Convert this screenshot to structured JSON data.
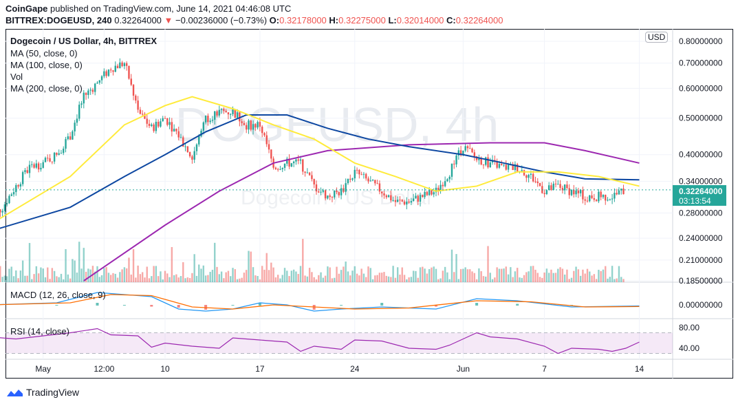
{
  "header": {
    "publisher": "CoinGape",
    "published_text": "published on TradingView.com, June 14, 2021 04:46:08 UTC",
    "symbol": "BITTREX:DOGEUSD, 240",
    "last": "0.32264000",
    "change": "−0.00236000 (−0.73%)",
    "o_label": "O:",
    "o": "0.32178000",
    "h_label": "H:",
    "h": "0.32275000",
    "l_label": "L:",
    "l": "0.32014000",
    "c_label": "C:",
    "c": "0.32264000"
  },
  "legend": {
    "title": "Dogecoin / US Dollar, 4h, BITTREX",
    "ma50": "MA (50, close, 0)",
    "ma100": "MA (100, close, 0)",
    "vol": "Vol",
    "ma200": "MA (200, close, 0)",
    "macd": "MACD (12, 26, close, 9)",
    "rsi": "RSI (14, close)"
  },
  "watermark": {
    "symbol": "DOGEUSD, 4h",
    "name": "Dogecoin / US Dollar"
  },
  "price_label": {
    "value": "0.32264000",
    "countdown": "03:13:54"
  },
  "currency_badge": "USD",
  "footer": {
    "brand": "TradingView"
  },
  "colors": {
    "up": "#26a69a",
    "down": "#ef5350",
    "ma50": "#ffeb3b",
    "ma100": "#0d47a1",
    "ma200": "#9c27b0",
    "macd": "#2196f3",
    "signal": "#ff6d00",
    "rsi": "#9c27b0"
  },
  "chart_data": {
    "type": "candlestick",
    "title": "Dogecoin / US Dollar, 4h, BITTREX",
    "y_scale": "log",
    "ylim": [
      0.185,
      0.8
    ],
    "yticks": [
      "0.80000000",
      "0.70000000",
      "0.60000000",
      "0.50000000",
      "0.40000000",
      "0.34000000",
      "0.28000000",
      "0.24000000",
      "0.21000000",
      "0.18500000"
    ],
    "ytick_values": [
      0.8,
      0.7,
      0.6,
      0.5,
      0.4,
      0.34,
      0.28,
      0.24,
      0.21,
      0.185
    ],
    "xticks": [
      {
        "label": "May",
        "day": 1
      },
      {
        "label": "12:00",
        "day": 5.5
      },
      {
        "label": "10",
        "day": 10
      },
      {
        "label": "17",
        "day": 17
      },
      {
        "label": "24",
        "day": 24
      },
      {
        "label": "Jun",
        "day": 32
      },
      {
        "label": "7",
        "day": 38
      },
      {
        "label": "14",
        "day": 45
      }
    ],
    "x_unit": "days since May 0 (Jun 1 = 32)",
    "daily_close": {
      "start_day": -3,
      "values": [
        0.27,
        0.29,
        0.33,
        0.37,
        0.38,
        0.4,
        0.45,
        0.57,
        0.62,
        0.68,
        0.7,
        0.52,
        0.47,
        0.5,
        0.45,
        0.39,
        0.5,
        0.52,
        0.52,
        0.48,
        0.48,
        0.37,
        0.38,
        0.38,
        0.33,
        0.31,
        0.32,
        0.36,
        0.34,
        0.32,
        0.3,
        0.3,
        0.31,
        0.32,
        0.36,
        0.42,
        0.39,
        0.38,
        0.37,
        0.37,
        0.35,
        0.32,
        0.33,
        0.32,
        0.31,
        0.31,
        0.31,
        0.3226
      ]
    },
    "ma50": [
      [
        -3,
        0.26
      ],
      [
        3,
        0.35
      ],
      [
        7,
        0.48
      ],
      [
        10,
        0.54
      ],
      [
        12,
        0.57
      ],
      [
        15,
        0.53
      ],
      [
        18,
        0.48
      ],
      [
        21,
        0.44
      ],
      [
        24,
        0.38
      ],
      [
        27,
        0.35
      ],
      [
        30,
        0.32
      ],
      [
        33,
        0.33
      ],
      [
        36,
        0.36
      ],
      [
        39,
        0.36
      ],
      [
        42,
        0.35
      ],
      [
        45,
        0.33
      ]
    ],
    "ma100": [
      [
        -3,
        0.25
      ],
      [
        3,
        0.29
      ],
      [
        7,
        0.35
      ],
      [
        10,
        0.4
      ],
      [
        13,
        0.46
      ],
      [
        16,
        0.51
      ],
      [
        19,
        0.51
      ],
      [
        22,
        0.47
      ],
      [
        25,
        0.44
      ],
      [
        28,
        0.42
      ],
      [
        32,
        0.4
      ],
      [
        35,
        0.38
      ],
      [
        38,
        0.36
      ],
      [
        41,
        0.345
      ],
      [
        45,
        0.343
      ]
    ],
    "ma200": [
      [
        4,
        0.185
      ],
      [
        10,
        0.26
      ],
      [
        14,
        0.32
      ],
      [
        18,
        0.38
      ],
      [
        22,
        0.41
      ],
      [
        28,
        0.425
      ],
      [
        34,
        0.43
      ],
      [
        38,
        0.43
      ],
      [
        41,
        0.41
      ],
      [
        45,
        0.38
      ]
    ],
    "macd": {
      "yticks": [
        "0.00000000"
      ],
      "macd": [
        [
          -3,
          0
        ],
        [
          2,
          0.01
        ],
        [
          5,
          0.06
        ],
        [
          7,
          0.05
        ],
        [
          9,
          0.04
        ],
        [
          11,
          -0.02
        ],
        [
          13,
          -0.03
        ],
        [
          15,
          -0.02
        ],
        [
          17,
          0.01
        ],
        [
          19,
          0
        ],
        [
          21,
          -0.03
        ],
        [
          23,
          -0.02
        ],
        [
          26,
          -0.01
        ],
        [
          30,
          -0.02
        ],
        [
          33,
          0.03
        ],
        [
          36,
          0.02
        ],
        [
          40,
          -0.01
        ],
        [
          45,
          -0.005
        ]
      ],
      "signal": [
        [
          -3,
          0
        ],
        [
          3,
          0.01
        ],
        [
          6,
          0.05
        ],
        [
          9,
          0.045
        ],
        [
          12,
          -0.01
        ],
        [
          15,
          -0.02
        ],
        [
          18,
          0
        ],
        [
          21,
          -0.01
        ],
        [
          24,
          -0.02
        ],
        [
          28,
          -0.015
        ],
        [
          33,
          0.02
        ],
        [
          37,
          0.015
        ],
        [
          41,
          -0.01
        ],
        [
          45,
          -0.008
        ]
      ]
    },
    "rsi": {
      "yticks": [
        "80.00",
        "40.00"
      ],
      "band": [
        30,
        70
      ],
      "values": [
        [
          -3,
          62
        ],
        [
          -1,
          58
        ],
        [
          1,
          64
        ],
        [
          3,
          70
        ],
        [
          5,
          78
        ],
        [
          6,
          66
        ],
        [
          8,
          64
        ],
        [
          9,
          42
        ],
        [
          10,
          50
        ],
        [
          12,
          44
        ],
        [
          14,
          40
        ],
        [
          15,
          60
        ],
        [
          17,
          56
        ],
        [
          19,
          52
        ],
        [
          20,
          34
        ],
        [
          21,
          44
        ],
        [
          23,
          38
        ],
        [
          24,
          56
        ],
        [
          26,
          54
        ],
        [
          28,
          40
        ],
        [
          30,
          38
        ],
        [
          31,
          46
        ],
        [
          33,
          70
        ],
        [
          34,
          62
        ],
        [
          36,
          58
        ],
        [
          38,
          44
        ],
        [
          39,
          30
        ],
        [
          40,
          40
        ],
        [
          42,
          38
        ],
        [
          43,
          34
        ],
        [
          44,
          40
        ],
        [
          45,
          52
        ]
      ]
    }
  }
}
